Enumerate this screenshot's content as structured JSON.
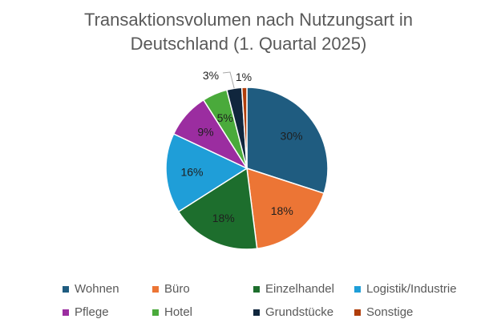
{
  "chart_data": {
    "type": "pie",
    "title_lines": [
      "Transaktionsvolumen nach Nutzungsart in",
      "Deutschland (1. Quartal 2025)"
    ],
    "categories": [
      "Wohnen",
      "Büro",
      "Einzelhandel",
      "Logistik/Industrie",
      "Pflege",
      "Hotel",
      "Grundstücke",
      "Sonstige"
    ],
    "values": [
      30,
      18,
      18,
      16,
      9,
      5,
      3,
      1
    ],
    "data_labels": [
      "30%",
      "18%",
      "18%",
      "16%",
      "9%",
      "5%",
      "3%",
      "1%"
    ],
    "colors": [
      "#1f5c80",
      "#ec7535",
      "#1d6e2d",
      "#1f9ed8",
      "#9b2da0",
      "#4aaa3b",
      "#10263d",
      "#b03e0b"
    ],
    "label_colors": [
      "#1f1f1f",
      "#1f1f1f",
      "#1f1f1f",
      "#1f1f1f",
      "#1f1f1f",
      "#1f1f1f",
      "#1f1f1f",
      "#1f1f1f"
    ],
    "start_angle_deg": 0,
    "legend_position": "bottom"
  }
}
